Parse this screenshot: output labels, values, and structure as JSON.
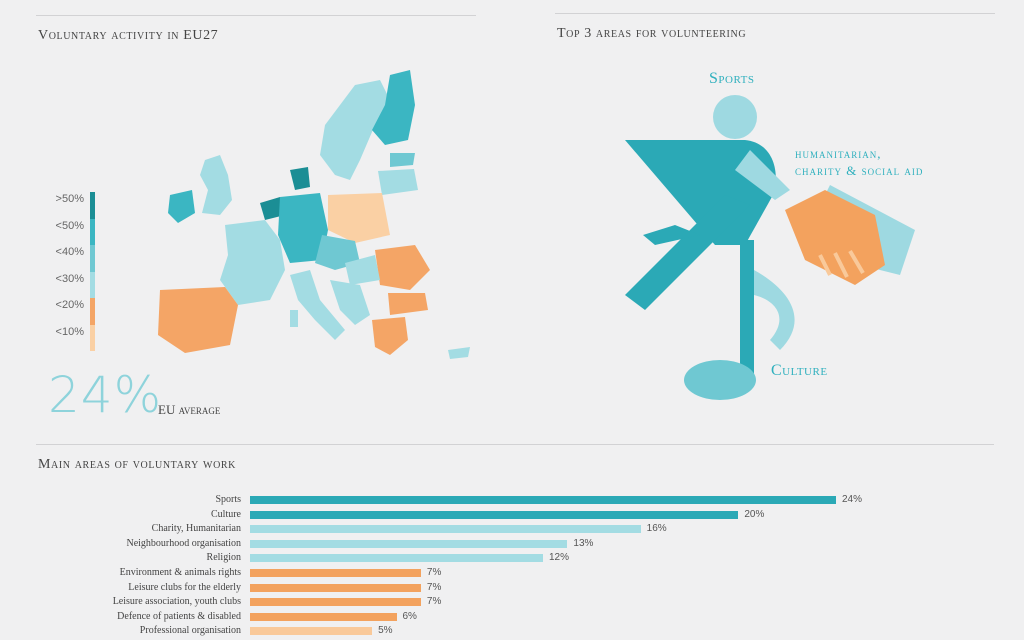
{
  "map_section": {
    "title": "Voluntary activity in EU27",
    "legend": [
      {
        "label": ">50%",
        "color": "#1b8e95"
      },
      {
        "label": "<50%",
        "color": "#3bb6c2"
      },
      {
        "label": "<40%",
        "color": "#6fc8d2"
      },
      {
        "label": "<30%",
        "color": "#a3dce3"
      },
      {
        "label": "<20%",
        "color": "#f4a566"
      },
      {
        "label": "<10%",
        "color": "#fad0a4"
      }
    ],
    "average_value": "24%",
    "average_label": "EU average"
  },
  "top3_section": {
    "title": "Top 3 areas for volunteering",
    "areas": [
      "Sports",
      "humanitarian,",
      "charity & social aid",
      "Culture"
    ]
  },
  "colors": {
    "teal_dark": "#2ba9b6",
    "teal_light": "#9ed9e1",
    "orange": "#f3a25e",
    "orange_light": "#f9c99a"
  },
  "bar_section": {
    "title": "Main areas of voluntary work"
  },
  "chart_data": {
    "type": "bar",
    "orientation": "horizontal",
    "title": "Main areas of voluntary work",
    "categories": [
      "Sports",
      "Culture",
      "Charity, Humanitarian",
      "Neighbourhood organisation",
      "Religion",
      "Environment & animals rights",
      "Leisure clubs for the elderly",
      "Leisure association, youth clubs",
      "Defence of patients & disabled",
      "Professional organisation"
    ],
    "values": [
      24,
      20,
      16,
      13,
      12,
      7,
      7,
      7,
      6,
      5
    ],
    "value_labels": [
      "24%",
      "20%",
      "16%",
      "13%",
      "12%",
      "7%",
      "7%",
      "7%",
      "6%",
      "5%"
    ],
    "bar_colors": [
      "#2ba9b6",
      "#2ba9b6",
      "#a3dce3",
      "#a3dce3",
      "#a3dce3",
      "#f3a25e",
      "#f3a25e",
      "#f3a25e",
      "#f3a25e",
      "#f9c99a"
    ],
    "xlim": [
      0,
      24
    ],
    "grid": false
  }
}
